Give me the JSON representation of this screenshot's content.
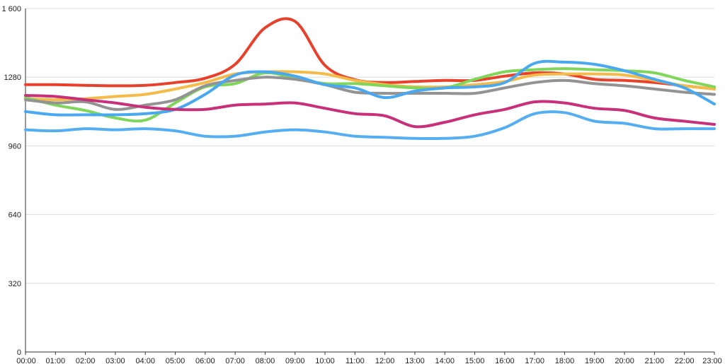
{
  "chart_data": {
    "type": "line",
    "title": "",
    "xlabel": "",
    "ylabel": "",
    "x": [
      "00:00",
      "01:00",
      "02:00",
      "03:00",
      "04:00",
      "05:00",
      "06:00",
      "07:00",
      "08:00",
      "09:00",
      "10:00",
      "11:00",
      "12:00",
      "13:00",
      "14:00",
      "15:00",
      "16:00",
      "17:00",
      "18:00",
      "19:00",
      "20:00",
      "21:00",
      "22:00",
      "23:00"
    ],
    "ylim": [
      0,
      1600
    ],
    "yticks": [
      0,
      320,
      640,
      960,
      1280,
      1600
    ],
    "ytick_labels": [
      "0",
      "320",
      "640",
      "960",
      "1280",
      "1 600"
    ],
    "grid": true,
    "legend": "none",
    "series": [
      {
        "color": "#e8412b",
        "values": [
          1245,
          1245,
          1242,
          1240,
          1242,
          1255,
          1275,
          1340,
          1510,
          1540,
          1335,
          1268,
          1255,
          1260,
          1265,
          1265,
          1285,
          1300,
          1295,
          1270,
          1265,
          1255,
          1240,
          1225
        ]
      },
      {
        "color": "#f5bb4a",
        "values": [
          1180,
          1175,
          1180,
          1190,
          1200,
          1225,
          1255,
          1295,
          1305,
          1305,
          1295,
          1265,
          1245,
          1235,
          1235,
          1245,
          1260,
          1290,
          1295,
          1295,
          1290,
          1265,
          1240,
          1225
        ]
      },
      {
        "color": "#7fd65a",
        "values": [
          1185,
          1150,
          1125,
          1090,
          1080,
          1160,
          1235,
          1250,
          1300,
          1275,
          1250,
          1250,
          1240,
          1230,
          1230,
          1270,
          1305,
          1315,
          1320,
          1315,
          1310,
          1300,
          1265,
          1235
        ]
      },
      {
        "color": "#939393",
        "values": [
          1175,
          1160,
          1165,
          1130,
          1150,
          1175,
          1240,
          1265,
          1280,
          1270,
          1245,
          1210,
          1205,
          1205,
          1205,
          1205,
          1230,
          1255,
          1265,
          1250,
          1240,
          1225,
          1210,
          1200
        ]
      },
      {
        "color": "#4aa8f1",
        "values": [
          1120,
          1105,
          1105,
          1105,
          1110,
          1130,
          1200,
          1290,
          1305,
          1285,
          1245,
          1230,
          1185,
          1215,
          1230,
          1235,
          1255,
          1345,
          1350,
          1340,
          1310,
          1270,
          1230,
          1155
        ]
      },
      {
        "color": "#c8307a",
        "values": [
          1195,
          1190,
          1175,
          1160,
          1140,
          1130,
          1130,
          1150,
          1155,
          1160,
          1135,
          1110,
          1100,
          1050,
          1070,
          1105,
          1130,
          1165,
          1160,
          1135,
          1125,
          1090,
          1075,
          1060
        ]
      },
      {
        "color": "#55aef2",
        "values": [
          1035,
          1030,
          1040,
          1035,
          1040,
          1030,
          1005,
          1005,
          1025,
          1035,
          1025,
          1005,
          1000,
          995,
          995,
          1005,
          1045,
          1110,
          1115,
          1075,
          1065,
          1040,
          1040,
          1040
        ]
      }
    ]
  }
}
